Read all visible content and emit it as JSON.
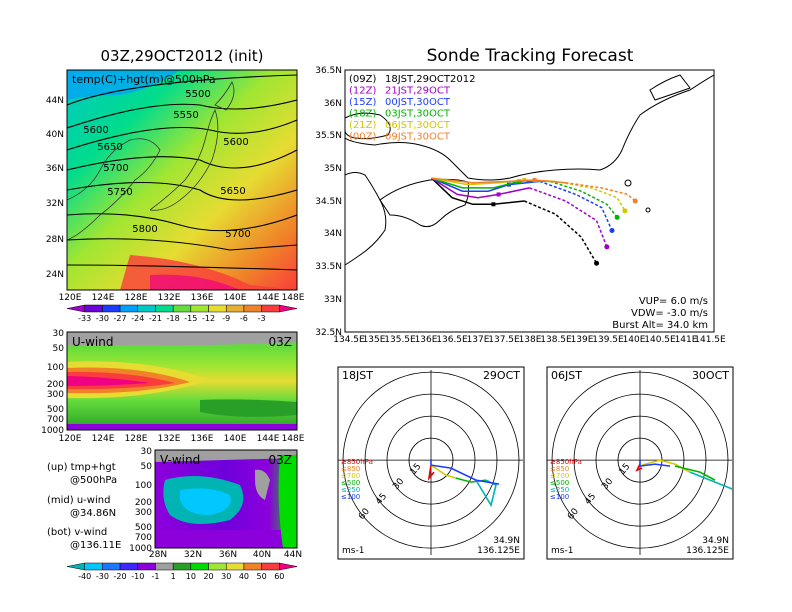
{
  "left_title": "03Z,29OCT2012 (init)",
  "right_title": "Sonde Tracking Forecast",
  "map500": {
    "label": "temp(C)+hgt(m)@500hPa",
    "lat_ticks": [
      "44N",
      "40N",
      "36N",
      "32N",
      "28N",
      "24N"
    ],
    "lon_ticks": [
      "120E",
      "124E",
      "128E",
      "132E",
      "136E",
      "140E",
      "144E",
      "148E"
    ],
    "contour_labels": [
      "5500",
      "5550",
      "5600",
      "5600",
      "5650",
      "5650",
      "5700",
      "5700",
      "5750",
      "5800"
    ],
    "colorbar_ticks": [
      "-33",
      "-30",
      "-27",
      "-24",
      "-21",
      "-18",
      "-15",
      "-12",
      "-9",
      "-6",
      "-3"
    ],
    "colorbar_colors": [
      "#a000c8",
      "#6e00dc",
      "#1e3cff",
      "#00a0ff",
      "#00c8c8",
      "#00dc8c",
      "#64dc3c",
      "#a0e632",
      "#e6dc32",
      "#e6af2d",
      "#f08228",
      "#fa3c3c",
      "#f00082"
    ]
  },
  "uwind": {
    "label": "U-wind",
    "time": "03Z",
    "p_ticks": [
      "30",
      "50",
      "100",
      "200",
      "300",
      "500",
      "700",
      "1000"
    ],
    "lon_ticks": [
      "120E",
      "124E",
      "128E",
      "132E",
      "136E",
      "140E",
      "144E",
      "148E"
    ]
  },
  "vwind": {
    "label": "V-wind",
    "time": "03Z",
    "p_ticks": [
      "30",
      "50",
      "100",
      "200",
      "300",
      "500",
      "700",
      "1000"
    ],
    "lat_ticks": [
      "28N",
      "32N",
      "36N",
      "40N",
      "44N"
    ],
    "colorbar_ticks": [
      "-40",
      "-30",
      "-20",
      "-10",
      "-1",
      "1",
      "10",
      "20",
      "30",
      "40",
      "50",
      "60"
    ],
    "colorbar_colors": [
      "#00b4b4",
      "#00c8ff",
      "#1e78ff",
      "#3c28ff",
      "#8c00dc",
      "#a0a0a0",
      "#28a028",
      "#00dc00",
      "#a0e632",
      "#e6dc32",
      "#f08228",
      "#fa3c3c",
      "#f00082"
    ]
  },
  "legend_notes": {
    "up_1": "(up) tmp+hgt",
    "up_2": "@500hPa",
    "mid_1": "(mid) u-wind",
    "mid_2": "@34.86N",
    "bot_1": "(bot) v-wind",
    "bot_2": "@136.11E"
  },
  "track_map": {
    "lat_ticks": [
      "36.5N",
      "36N",
      "35.5N",
      "35N",
      "34.5N",
      "34N",
      "33.5N",
      "33N",
      "32.5N"
    ],
    "lon_ticks": [
      "134.5E",
      "135E",
      "135.5E",
      "136E",
      "136.5E",
      "137E",
      "137.5E",
      "138E",
      "138.5E",
      "139E",
      "139.5E",
      "140E",
      "140.5E",
      "141E",
      "141.5E"
    ],
    "vup": "VUP= 6.0 m/s",
    "vdw": "VDW= -3.0 m/s",
    "burst": "Burst Alt= 34.0 km",
    "launches": [
      {
        "init": "(09Z)",
        "time": "18JST,29OCT2012",
        "color": "#000000"
      },
      {
        "init": "(12Z)",
        "time": "21JST,29OCT",
        "color": "#a000c8"
      },
      {
        "init": "(15Z)",
        "time": "00JST,30OCT",
        "color": "#1e3cff"
      },
      {
        "init": "(18Z)",
        "time": "03JST,30OCT",
        "color": "#00b400"
      },
      {
        "init": "(21Z)",
        "time": "06JST,30OCT",
        "color": "#d2c800"
      },
      {
        "init": "(00Z)",
        "time": "09JST,30OCT",
        "color": "#f08228"
      }
    ]
  },
  "hodo1": {
    "time": "18JST",
    "date": "29OCT",
    "lat": "34.9N",
    "lon": "136.125E",
    "unit": "ms-1",
    "rings": [
      "15",
      "30",
      "45",
      "60"
    ],
    "levels": [
      "≥850hPa",
      "≤850",
      "≤700",
      "≤500",
      "≤250",
      "≤100"
    ],
    "level_colors": [
      "#e60000",
      "#f08228",
      "#d2c800",
      "#00b400",
      "#00b4b4",
      "#1e3cff"
    ]
  },
  "hodo2": {
    "time": "06JST",
    "date": "30OCT",
    "lat": "34.9N",
    "lon": "136.125E",
    "unit": "ms-1",
    "rings": [
      "15",
      "30",
      "45",
      "60"
    ],
    "levels": [
      "≥850hPa",
      "≤850",
      "≤700",
      "≤500",
      "≤250",
      "≤100"
    ],
    "level_colors": [
      "#e60000",
      "#f08228",
      "#d2c800",
      "#00b400",
      "#00b4b4",
      "#1e3cff"
    ]
  },
  "chart_data": [
    {
      "type": "line",
      "title": "Sonde Tracking Forecast",
      "x_unit": "deg E",
      "y_unit": "deg N",
      "xlim": [
        134.5,
        141.5
      ],
      "ylim": [
        32.5,
        36.5
      ],
      "series": [
        {
          "name": "18JST,29OCT2012",
          "x": [
            136.1,
            136.5,
            136.9,
            137.3,
            137.9,
            138.5,
            139.0,
            139.3
          ],
          "y": [
            34.85,
            34.55,
            34.45,
            34.45,
            34.5,
            34.3,
            33.95,
            33.55
          ]
        },
        {
          "name": "21JST,29OCT",
          "x": [
            136.1,
            136.6,
            137.0,
            137.4,
            138.0,
            138.7,
            139.3,
            139.5
          ],
          "y": [
            34.85,
            34.6,
            34.55,
            34.6,
            34.7,
            34.5,
            34.2,
            33.8
          ]
        },
        {
          "name": "00JST,30OCT",
          "x": [
            136.1,
            136.7,
            137.2,
            137.6,
            138.2,
            138.9,
            139.4,
            139.6
          ],
          "y": [
            34.85,
            34.65,
            34.65,
            34.75,
            34.8,
            34.6,
            34.4,
            34.05
          ]
        },
        {
          "name": "03JST,30OCT",
          "x": [
            136.1,
            136.7,
            137.3,
            137.8,
            138.4,
            139.0,
            139.5,
            139.7
          ],
          "y": [
            34.85,
            34.7,
            34.7,
            34.8,
            34.8,
            34.65,
            34.45,
            34.25
          ]
        },
        {
          "name": "06JST,30OCT",
          "x": [
            136.1,
            136.8,
            137.4,
            137.9,
            138.5,
            139.2,
            139.7,
            139.85
          ],
          "y": [
            34.85,
            34.75,
            34.78,
            34.82,
            34.8,
            34.7,
            34.55,
            34.35
          ]
        },
        {
          "name": "09JST,30OCT",
          "x": [
            136.1,
            136.9,
            137.6,
            138.1,
            138.7,
            139.4,
            139.9,
            140.05
          ],
          "y": [
            34.85,
            34.78,
            34.8,
            34.82,
            34.78,
            34.7,
            34.6,
            34.5
          ]
        }
      ]
    }
  ]
}
